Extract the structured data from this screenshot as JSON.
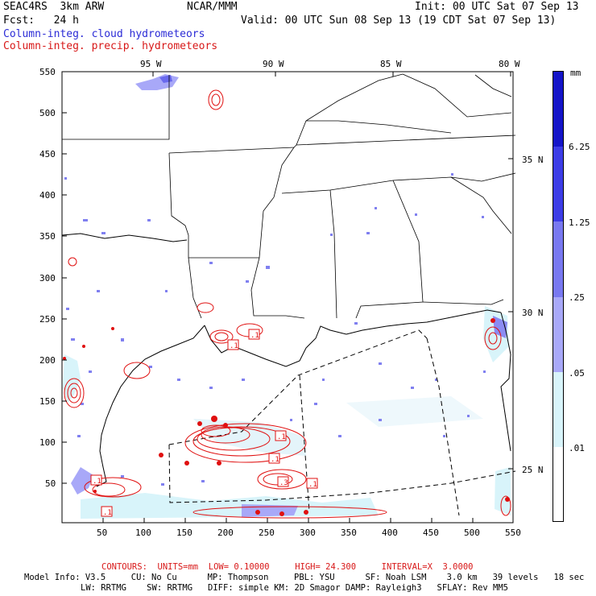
{
  "header": {
    "model": "SEAC4RS  3km ARW",
    "center": "NCAR/MMM",
    "init": "Init: 00 UTC Sat 07 Sep 13",
    "fcst": "Fcst:   24 h",
    "valid": "Valid: 00 UTC Sun 08 Sep 13 (19 CDT Sat 07 Sep 13)",
    "field1": "Column-integ. cloud hydrometeors",
    "field2": "Column-integ. precip. hydrometeors"
  },
  "axes": {
    "x_ticks": [
      "50",
      "100",
      "150",
      "200",
      "250",
      "300",
      "350",
      "400",
      "450",
      "500",
      "550"
    ],
    "y_ticks": [
      "550",
      "500",
      "450",
      "400",
      "350",
      "300",
      "250",
      "200",
      "150",
      "100",
      "50"
    ],
    "lon_labels": [
      "95 W",
      "90 W",
      "85 W",
      "80 W"
    ],
    "lat_labels": [
      "35 N",
      "30 N",
      "25 N"
    ]
  },
  "colorbar": {
    "units": "mm",
    "labels": [
      "6.25",
      "1.25",
      ".25",
      ".05",
      ".01"
    ],
    "colors": [
      "#1414c8",
      "#3c3ce6",
      "#7878f0",
      "#a8a8f8",
      "#d8f4fa",
      "#ffffff"
    ]
  },
  "contour_labels": [
    ".1",
    ".1",
    ".1",
    ".1",
    ".3",
    ".1",
    ".1",
    ".1"
  ],
  "footer": {
    "contours": "CONTOURS:  UNITS=mm  LOW= 0.10000     HIGH= 24.300     INTERVAL=X  3.0000",
    "line1": "Model Info: V3.5     CU: No Cu      MP: Thompson     PBL: YSU      SF: Noah LSM    3.0 km   39 levels   18 sec",
    "line2": "LW: RRTMG    SW: RRTMG   DIFF: simple KM: 2D Smagor DAMP: Rayleigh3   SFLAY: Rev MM5"
  }
}
